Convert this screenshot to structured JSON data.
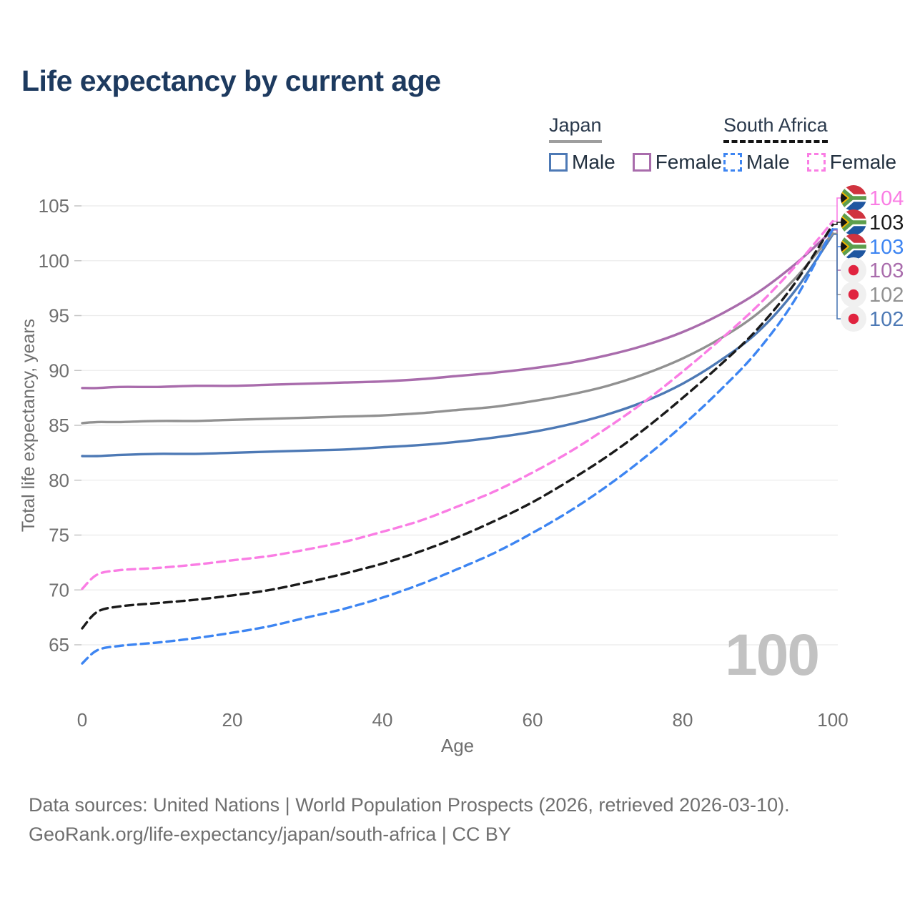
{
  "title": "Life expectancy by current age",
  "legend": {
    "japan": {
      "label": "Japan",
      "male": "Male",
      "female": "Female"
    },
    "south_africa": {
      "label": "South Africa",
      "male": "Male",
      "female": "Female"
    }
  },
  "watermark": "100",
  "footer": {
    "line1": "Data sources: United Nations | World Population Prospects (2026, retrieved 2026-03-10).",
    "line2": "GeoRank.org/life-expectancy/japan/south-africa | CC BY"
  },
  "colors": {
    "title": "#1d3a5f",
    "axis_text": "#6f6f6f",
    "gridline": "#ebebeb",
    "tick_mark": "#c4c4c4",
    "watermark": "#c2c2c2",
    "japan_male": "#4d79b5",
    "japan_female": "#a96cac",
    "japan_total": "#919191",
    "south_africa_male": "#3d85f2",
    "south_africa_female": "#fa7de4",
    "south_africa_total": "#1a1a1a",
    "flag_japan_red": "#e0233f",
    "flag_sa_red": "#d0333f",
    "flag_sa_blue": "#1e56a0",
    "flag_sa_green": "#5d9e4c",
    "flag_sa_gold": "#f2b600"
  },
  "chart_data": {
    "type": "line",
    "title": "Life expectancy by current age",
    "xlabel": "Age",
    "ylabel": "Total life expectancy, years",
    "xlim": [
      0,
      100
    ],
    "ylim": [
      65,
      105
    ],
    "x_ticks": [
      0,
      20,
      40,
      60,
      80,
      100
    ],
    "y_ticks": [
      65,
      70,
      75,
      80,
      85,
      90,
      95,
      100,
      105
    ],
    "grid": "horizontal",
    "legend_position": "top-right",
    "ages": [
      0,
      2,
      5,
      10,
      15,
      20,
      25,
      30,
      35,
      40,
      45,
      50,
      55,
      60,
      65,
      70,
      75,
      80,
      85,
      90,
      95,
      100
    ],
    "series": [
      {
        "name": "Japan Male",
        "country": "japan",
        "sex": "male",
        "style": "solid",
        "color": "#4d79b5",
        "values": [
          82.2,
          82.2,
          82.3,
          82.4,
          82.4,
          82.5,
          82.6,
          82.7,
          82.8,
          83.0,
          83.2,
          83.5,
          83.9,
          84.4,
          85.1,
          86.0,
          87.2,
          88.8,
          90.9,
          93.5,
          97.3,
          102.4
        ],
        "end_label": "102"
      },
      {
        "name": "Japan",
        "country": "japan",
        "sex": "total",
        "style": "solid",
        "color": "#919191",
        "values": [
          85.2,
          85.3,
          85.3,
          85.4,
          85.4,
          85.5,
          85.6,
          85.7,
          85.8,
          85.9,
          86.1,
          86.4,
          86.7,
          87.2,
          87.8,
          88.6,
          89.7,
          91.1,
          92.9,
          95.2,
          98.4,
          102.5
        ],
        "end_label": "102"
      },
      {
        "name": "Japan Female",
        "country": "japan",
        "sex": "female",
        "style": "solid",
        "color": "#a96cac",
        "values": [
          88.4,
          88.4,
          88.5,
          88.5,
          88.6,
          88.6,
          88.7,
          88.8,
          88.9,
          89.0,
          89.2,
          89.5,
          89.8,
          90.2,
          90.7,
          91.4,
          92.3,
          93.5,
          95.1,
          97.1,
          99.7,
          102.8
        ],
        "end_label": "103"
      },
      {
        "name": "South Africa Male",
        "country": "south-africa",
        "sex": "male",
        "style": "dashed",
        "color": "#3d85f2",
        "values": [
          63.3,
          64.5,
          64.9,
          65.2,
          65.6,
          66.1,
          66.7,
          67.5,
          68.3,
          69.3,
          70.5,
          71.9,
          73.4,
          75.2,
          77.2,
          79.5,
          82.1,
          85.0,
          88.2,
          91.8,
          96.5,
          102.9
        ],
        "end_label": "103"
      },
      {
        "name": "South Africa",
        "country": "south-africa",
        "sex": "total",
        "style": "dashed",
        "color": "#1a1a1a",
        "values": [
          66.5,
          68.0,
          68.5,
          68.8,
          69.1,
          69.5,
          70.0,
          70.7,
          71.5,
          72.4,
          73.5,
          74.8,
          76.3,
          78.0,
          80.0,
          82.2,
          84.7,
          87.5,
          90.5,
          93.8,
          98.0,
          103.3
        ],
        "end_label": "103"
      },
      {
        "name": "South Africa Female",
        "country": "south-africa",
        "sex": "female",
        "style": "dashed",
        "color": "#fa7de4",
        "values": [
          70.1,
          71.4,
          71.8,
          72.0,
          72.3,
          72.7,
          73.1,
          73.7,
          74.4,
          75.3,
          76.3,
          77.6,
          79.0,
          80.7,
          82.6,
          84.8,
          87.2,
          89.9,
          92.8,
          95.9,
          99.5,
          103.6
        ],
        "end_label": "104"
      }
    ],
    "end_labels": [
      {
        "value": "104",
        "flag": "south-africa",
        "series": "South Africa Female",
        "color": "#fa7de4"
      },
      {
        "value": "103",
        "flag": "south-africa",
        "series": "South Africa",
        "color": "#1a1a1a"
      },
      {
        "value": "103",
        "flag": "south-africa",
        "series": "South Africa Male",
        "color": "#3d85f2"
      },
      {
        "value": "103",
        "flag": "japan",
        "series": "Japan Female",
        "color": "#a96cac"
      },
      {
        "value": "102",
        "flag": "japan",
        "series": "Japan",
        "color": "#919191"
      },
      {
        "value": "102",
        "flag": "japan",
        "series": "Japan Male",
        "color": "#4d79b5"
      }
    ]
  }
}
